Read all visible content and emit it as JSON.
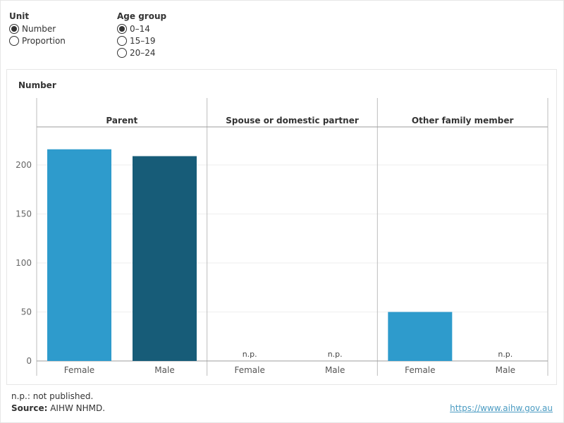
{
  "controls": {
    "unit": {
      "title": "Unit",
      "options": [
        {
          "label": "Number",
          "checked": true
        },
        {
          "label": "Proportion",
          "checked": false
        }
      ]
    },
    "age_group": {
      "title": "Age group",
      "options": [
        {
          "label": "0–14",
          "checked": true
        },
        {
          "label": "15–19",
          "checked": false
        },
        {
          "label": "20–24",
          "checked": false
        }
      ]
    }
  },
  "footer": {
    "note": "n.p.: not published.",
    "source_label": "Source:",
    "source_text": " AIHW NHMD.",
    "link": "https://www.aihw.gov.au"
  },
  "colors": {
    "female": "#2e9bcc",
    "male": "#175c78"
  },
  "chart_data": {
    "type": "bar",
    "ylabel": "Number",
    "ylim": [
      0,
      220
    ],
    "yticks": [
      0,
      50,
      100,
      150,
      200
    ],
    "panels": [
      {
        "title": "Parent",
        "bars": [
          {
            "category": "Female",
            "value": 216,
            "label": null
          },
          {
            "category": "Male",
            "value": 209,
            "label": null
          }
        ]
      },
      {
        "title": "Spouse or domestic partner",
        "bars": [
          {
            "category": "Female",
            "value": null,
            "label": "n.p."
          },
          {
            "category": "Male",
            "value": null,
            "label": "n.p."
          }
        ]
      },
      {
        "title": "Other family member",
        "bars": [
          {
            "category": "Female",
            "value": 50,
            "label": null
          },
          {
            "category": "Male",
            "value": null,
            "label": "n.p."
          }
        ]
      }
    ]
  }
}
